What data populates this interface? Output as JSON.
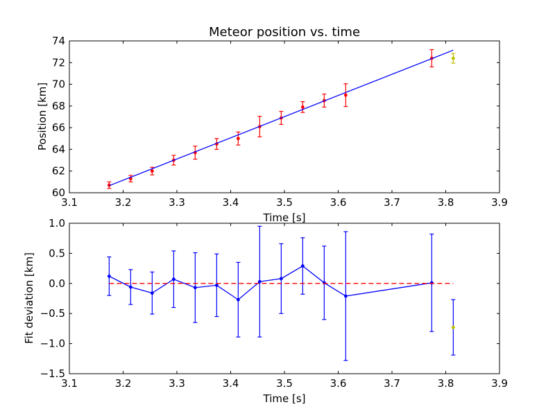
{
  "chart_data": [
    {
      "type": "scatter",
      "title": "Meteor position vs. time",
      "xlabel": "Time [s]",
      "ylabel": "Position [km]",
      "xlim": [
        3.1,
        3.9
      ],
      "ylim": [
        60,
        74
      ],
      "xticks": [
        "3.1",
        "3.2",
        "3.3",
        "3.4",
        "3.5",
        "3.6",
        "3.7",
        "3.8",
        "3.9"
      ],
      "yticks": [
        "60",
        "62",
        "64",
        "66",
        "68",
        "70",
        "72",
        "74"
      ],
      "grid": false,
      "series": [
        {
          "kind": "errorbar-points",
          "color": "#ff0000",
          "x": [
            3.174,
            3.214,
            3.254,
            3.294,
            3.334,
            3.374,
            3.414,
            3.454,
            3.494,
            3.534,
            3.574,
            3.614,
            3.774
          ],
          "y": [
            60.7,
            61.3,
            62.0,
            63.0,
            63.7,
            64.5,
            65.0,
            66.1,
            66.9,
            67.9,
            68.5,
            69.0,
            72.4
          ],
          "yerr": [
            0.3,
            0.3,
            0.35,
            0.45,
            0.6,
            0.5,
            0.6,
            0.95,
            0.6,
            0.5,
            0.6,
            1.05,
            0.8
          ]
        },
        {
          "kind": "errorbar-points",
          "color": "#bfbf00",
          "x": [
            3.814
          ],
          "y": [
            72.4
          ],
          "yerr": [
            0.45
          ]
        },
        {
          "kind": "fit-line",
          "color": "#0000ff",
          "x": [
            3.174,
            3.814
          ],
          "y": [
            60.65,
            73.15
          ]
        }
      ]
    },
    {
      "type": "line",
      "title": "",
      "xlabel": "Time [s]",
      "ylabel": "Fit deviation [km]",
      "xlim": [
        3.1,
        3.9
      ],
      "ylim": [
        -1.5,
        1.0
      ],
      "xticks": [
        "3.1",
        "3.2",
        "3.3",
        "3.4",
        "3.5",
        "3.6",
        "3.7",
        "3.8",
        "3.9"
      ],
      "yticks": [
        "−1.5",
        "−1.0",
        "−0.5",
        "0.0",
        "0.5",
        "1.0"
      ],
      "grid": false,
      "series": [
        {
          "kind": "errorbar-line",
          "color": "#0000ff",
          "x": [
            3.174,
            3.214,
            3.254,
            3.294,
            3.334,
            3.374,
            3.414,
            3.454,
            3.494,
            3.534,
            3.574,
            3.614,
            3.774
          ],
          "y": [
            0.12,
            -0.06,
            -0.16,
            0.07,
            -0.07,
            -0.03,
            -0.27,
            0.03,
            0.08,
            0.29,
            0.01,
            -0.21,
            0.01
          ],
          "yerr": [
            0.32,
            0.29,
            0.35,
            0.47,
            0.58,
            0.52,
            0.62,
            0.92,
            0.58,
            0.47,
            0.61,
            1.07,
            0.81
          ]
        },
        {
          "kind": "errorbar-points",
          "color": "#bfbf00",
          "bar_color": "#0000ff",
          "x": [
            3.814
          ],
          "y": [
            -0.73
          ],
          "yerr": [
            0.46
          ]
        },
        {
          "kind": "reference-line",
          "color": "#ff0000",
          "x": [
            3.174,
            3.814
          ],
          "y": [
            0.0,
            0.0
          ]
        }
      ]
    }
  ]
}
